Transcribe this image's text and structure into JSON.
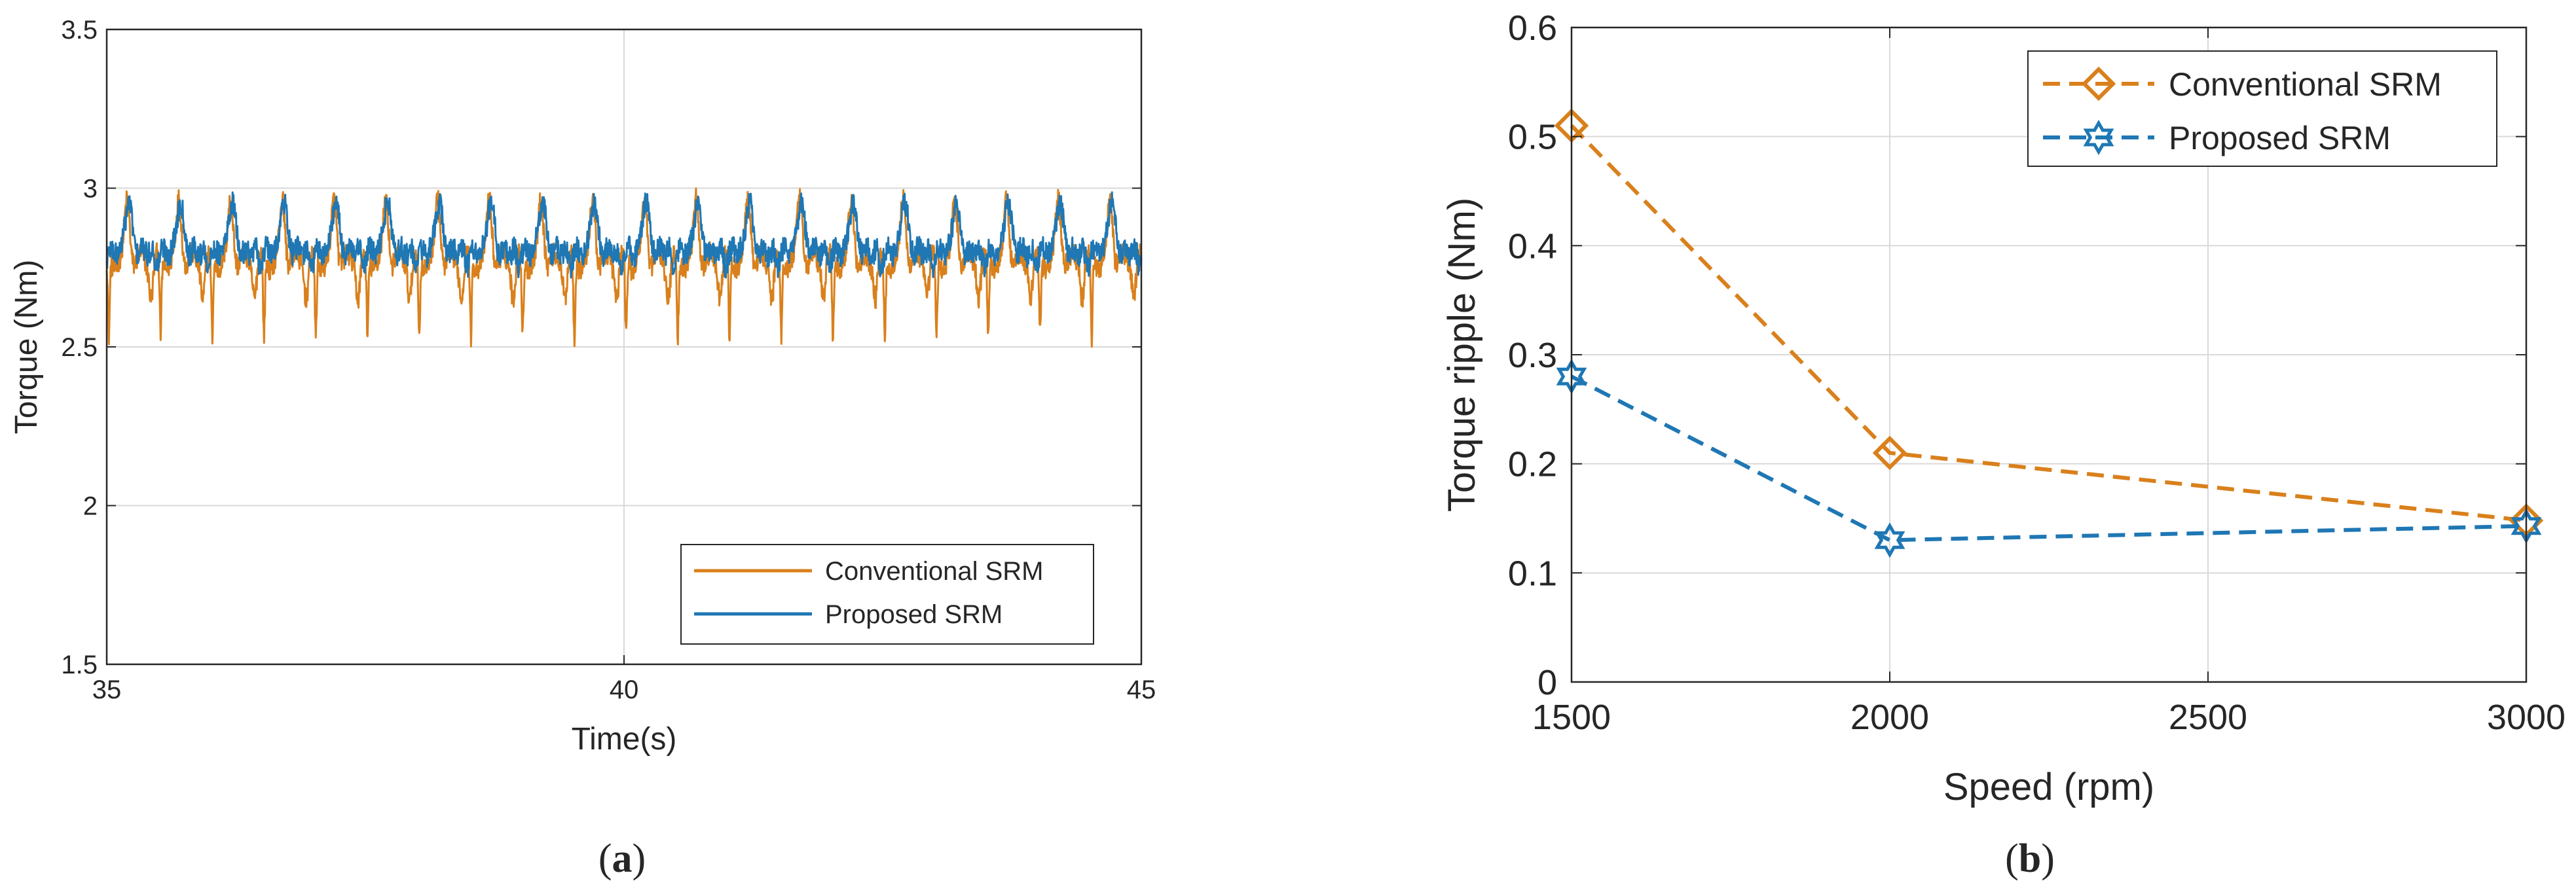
{
  "colors": {
    "conventional": "#d9801c",
    "proposed": "#1f77b4",
    "grid": "#d9d9d9",
    "axis": "#262626"
  },
  "chart_data": [
    {
      "id": "a",
      "type": "line",
      "caption": "(a)",
      "caption_letter": "a",
      "xlabel": "Time(s)",
      "ylabel": "Torque (Nm)",
      "xlim": [
        35,
        45
      ],
      "ylim": [
        1.5,
        3.5
      ],
      "xticks": [
        35,
        40,
        45
      ],
      "xtick_labels": [
        "35",
        "40",
        "45"
      ],
      "yticks": [
        1.5,
        2,
        2.5,
        3,
        3.5
      ],
      "ytick_labels": [
        "1.5",
        "2",
        "2.5",
        "3",
        "3.5"
      ],
      "grid": true,
      "legend_position": "bottom-right",
      "period_s": 0.5,
      "series": [
        {
          "name": "Conventional SRM",
          "color": "#d9801c",
          "baseline": 2.77,
          "peak": 2.96,
          "dip_min": 2.52,
          "overall_max": 3.01,
          "overall_min": 2.48
        },
        {
          "name": "Proposed SRM",
          "color": "#1f77b4",
          "baseline": 2.8,
          "peak": 2.96,
          "dip_min": 2.72,
          "overall_max": 3.01,
          "overall_min": 2.72
        }
      ]
    },
    {
      "id": "b",
      "type": "line",
      "caption": "(b)",
      "caption_letter": "b",
      "xlabel": "Speed (rpm)",
      "ylabel": "Torque ripple (Nm)",
      "xlim": [
        1500,
        3000
      ],
      "ylim": [
        0,
        0.6
      ],
      "xticks": [
        1500,
        2000,
        2500,
        3000
      ],
      "xtick_labels": [
        "1500",
        "2000",
        "2500",
        "3000"
      ],
      "yticks": [
        0,
        0.1,
        0.2,
        0.3,
        0.4,
        0.5,
        0.6
      ],
      "ytick_labels": [
        "0",
        "0.1",
        "0.2",
        "0.3",
        "0.4",
        "0.5",
        "0.6"
      ],
      "grid": true,
      "legend_position": "top-right",
      "x": [
        1500,
        2000,
        3000
      ],
      "series": [
        {
          "name": "Conventional SRM",
          "color": "#d9801c",
          "marker": "diamond",
          "linestyle": "dashed",
          "values": [
            0.51,
            0.21,
            0.148
          ]
        },
        {
          "name": "Proposed SRM",
          "color": "#1f77b4",
          "marker": "hexagram",
          "linestyle": "dashed",
          "values": [
            0.28,
            0.13,
            0.143
          ]
        }
      ]
    }
  ]
}
